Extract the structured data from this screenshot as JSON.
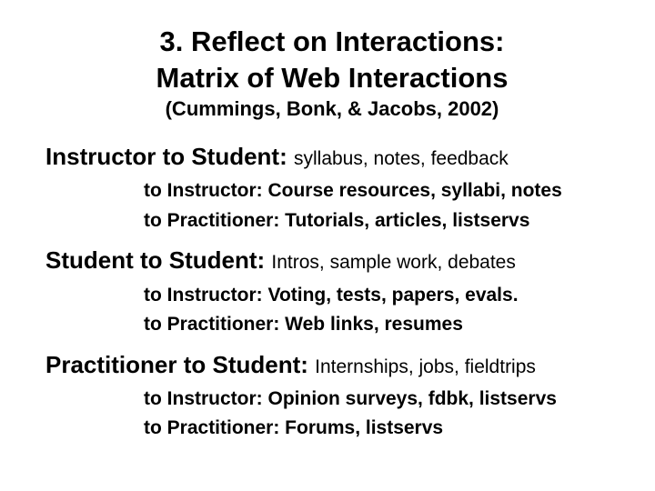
{
  "title_line1": "3. Reflect on Interactions:",
  "title_line2": "Matrix of Web Interactions",
  "citation": "(Cummings, Bonk, & Jacobs, 2002)",
  "sections": {
    "instructor": {
      "headline": "Instructor to Student: ",
      "headline_rest": "syllabus, notes, feedback",
      "to_instructor": "to Instructor: Course resources, syllabi, notes",
      "to_practitioner": "to Practitioner: Tutorials, articles, listservs"
    },
    "student": {
      "headline": "Student to Student: ",
      "headline_rest": "Intros, sample work, debates",
      "to_instructor": "to Instructor: Voting, tests, papers, evals.",
      "to_practitioner": "to Practitioner: Web links, resumes"
    },
    "practitioner": {
      "headline": "Practitioner to Student: ",
      "headline_rest": "Internships, jobs, fieldtrips",
      "to_instructor": "to Instructor: Opinion surveys, fdbk, listservs",
      "to_practitioner": "to Practitioner: Forums, listservs"
    }
  }
}
